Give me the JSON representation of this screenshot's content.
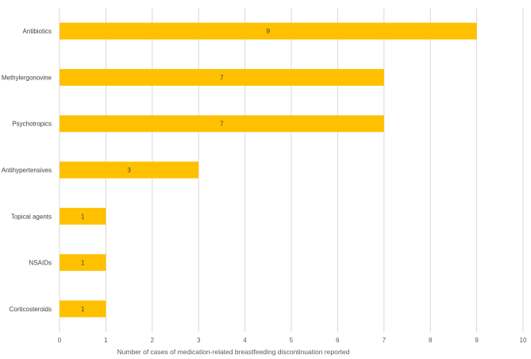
{
  "chart_data": {
    "type": "bar",
    "orientation": "horizontal",
    "categories": [
      "Antibiotics",
      "Methylergonovine",
      "Psychotropics",
      "Antihypertensives",
      "Topical agents",
      "NSAIDs",
      "Corticosteroids"
    ],
    "values": [
      9,
      7,
      7,
      3,
      1,
      1,
      1
    ],
    "data_labels": [
      "9",
      "7",
      "7",
      "3",
      "1",
      "1",
      "1"
    ],
    "xlabel": "Number of cases of medication-related breastfeeding discontinuation reported",
    "ylabel": "",
    "xlim": [
      0,
      10
    ],
    "x_ticks": [
      "0",
      "1",
      "2",
      "3",
      "4",
      "5",
      "6",
      "7",
      "8",
      "9",
      "10"
    ],
    "grid": "vertical gridlines on",
    "legend": "none",
    "bar_color": "#FFC000",
    "grid_color": "#D9D9D9"
  }
}
